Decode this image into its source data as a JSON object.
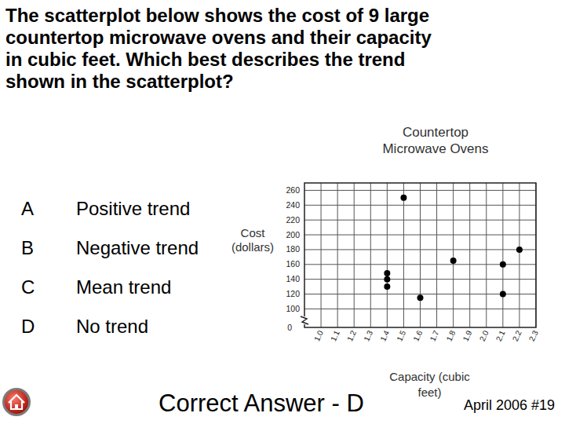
{
  "question": {
    "lines": [
      "The scatterplot below shows the cost of 9 large",
      "countertop microwave ovens and their capacity",
      "in cubic feet. Which best describes the trend",
      "shown in the scatterplot?"
    ]
  },
  "options": [
    {
      "letter": "A",
      "text": "Positive trend"
    },
    {
      "letter": "B",
      "text": "Negative trend"
    },
    {
      "letter": "C",
      "text": "Mean trend"
    },
    {
      "letter": "D",
      "text": "No trend"
    }
  ],
  "answer": "Correct Answer - D",
  "source": "April 2006 #19",
  "chart_data": {
    "type": "scatter",
    "title": "Countertop Microwave Ovens",
    "x_label": "Capacity (cubic feet)",
    "y_label": "Cost (dollars)",
    "x": [
      1.4,
      1.4,
      1.4,
      1.5,
      1.6,
      1.8,
      2.1,
      2.1,
      2.2
    ],
    "values": [
      148,
      140,
      130,
      250,
      115,
      165,
      160,
      120,
      180
    ],
    "color": "#000000",
    "marker": "circle",
    "xlim": [
      0.9,
      2.3
    ],
    "xticks": [
      {
        "value": 1,
        "label": "1.0"
      },
      1.1,
      1.2,
      1.3,
      1.4,
      1.5,
      1.6,
      1.7,
      1.8,
      1.9,
      {
        "value": 2,
        "label": "2.0"
      },
      2.1,
      2.2,
      2.3
    ],
    "ylim": [
      75,
      270
    ],
    "yticks": [
      100,
      120,
      140,
      160,
      180,
      200,
      220,
      240,
      260
    ],
    "y_break_label": "0",
    "grid": true
  }
}
